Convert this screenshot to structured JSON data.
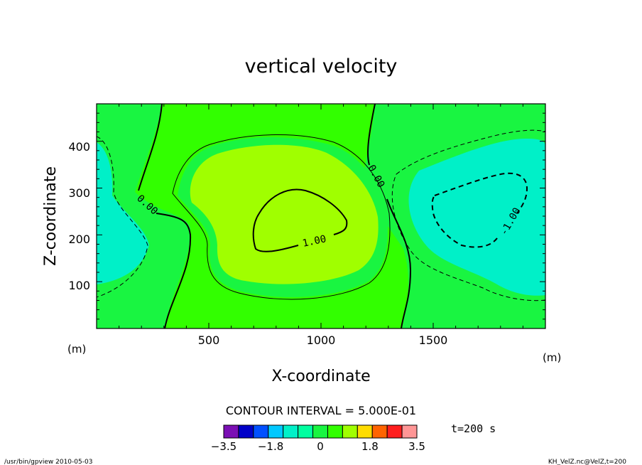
{
  "chart_data": {
    "type": "heatmap",
    "title": "vertical velocity",
    "xlabel": "X-coordinate",
    "ylabel": "Z-coordinate",
    "x_unit": "(m)",
    "z_unit": "(m)",
    "xlim": [
      0,
      2000
    ],
    "ylim": [
      0,
      480
    ],
    "x_ticks": [
      500,
      1000,
      1500
    ],
    "y_ticks": [
      100,
      200,
      300,
      400
    ],
    "contour_interval_label": "CONTOUR INTERVAL = 5.000E-01",
    "contour_labels": [
      "0.00",
      "0.00",
      "1.00",
      "-1.00"
    ],
    "time_label": "t=200 s",
    "colorbar": {
      "levels": [
        -3.5,
        -3.0,
        -2.5,
        -2.0,
        -1.5,
        -1.0,
        -0.5,
        0,
        0.5,
        1.0,
        1.5,
        2.0,
        2.5,
        3.0,
        3.5
      ],
      "colors": [
        "#7b0fb4",
        "#0000c8",
        "#0050ff",
        "#00c8ff",
        "#00f0c8",
        "#00ffa0",
        "#19f541",
        "#32ff00",
        "#a0ff00",
        "#ffdc00",
        "#ff6400",
        "#ff1e1e",
        "#ff9696"
      ],
      "tick_labels": [
        "-3.5",
        "-1.8",
        "0",
        "1.8",
        "3.5"
      ]
    },
    "grid": false
  },
  "footer": {
    "left": "/usr/bin/gpview  2010-05-03",
    "right": "KH_VelZ.nc@VelZ,t=200"
  }
}
